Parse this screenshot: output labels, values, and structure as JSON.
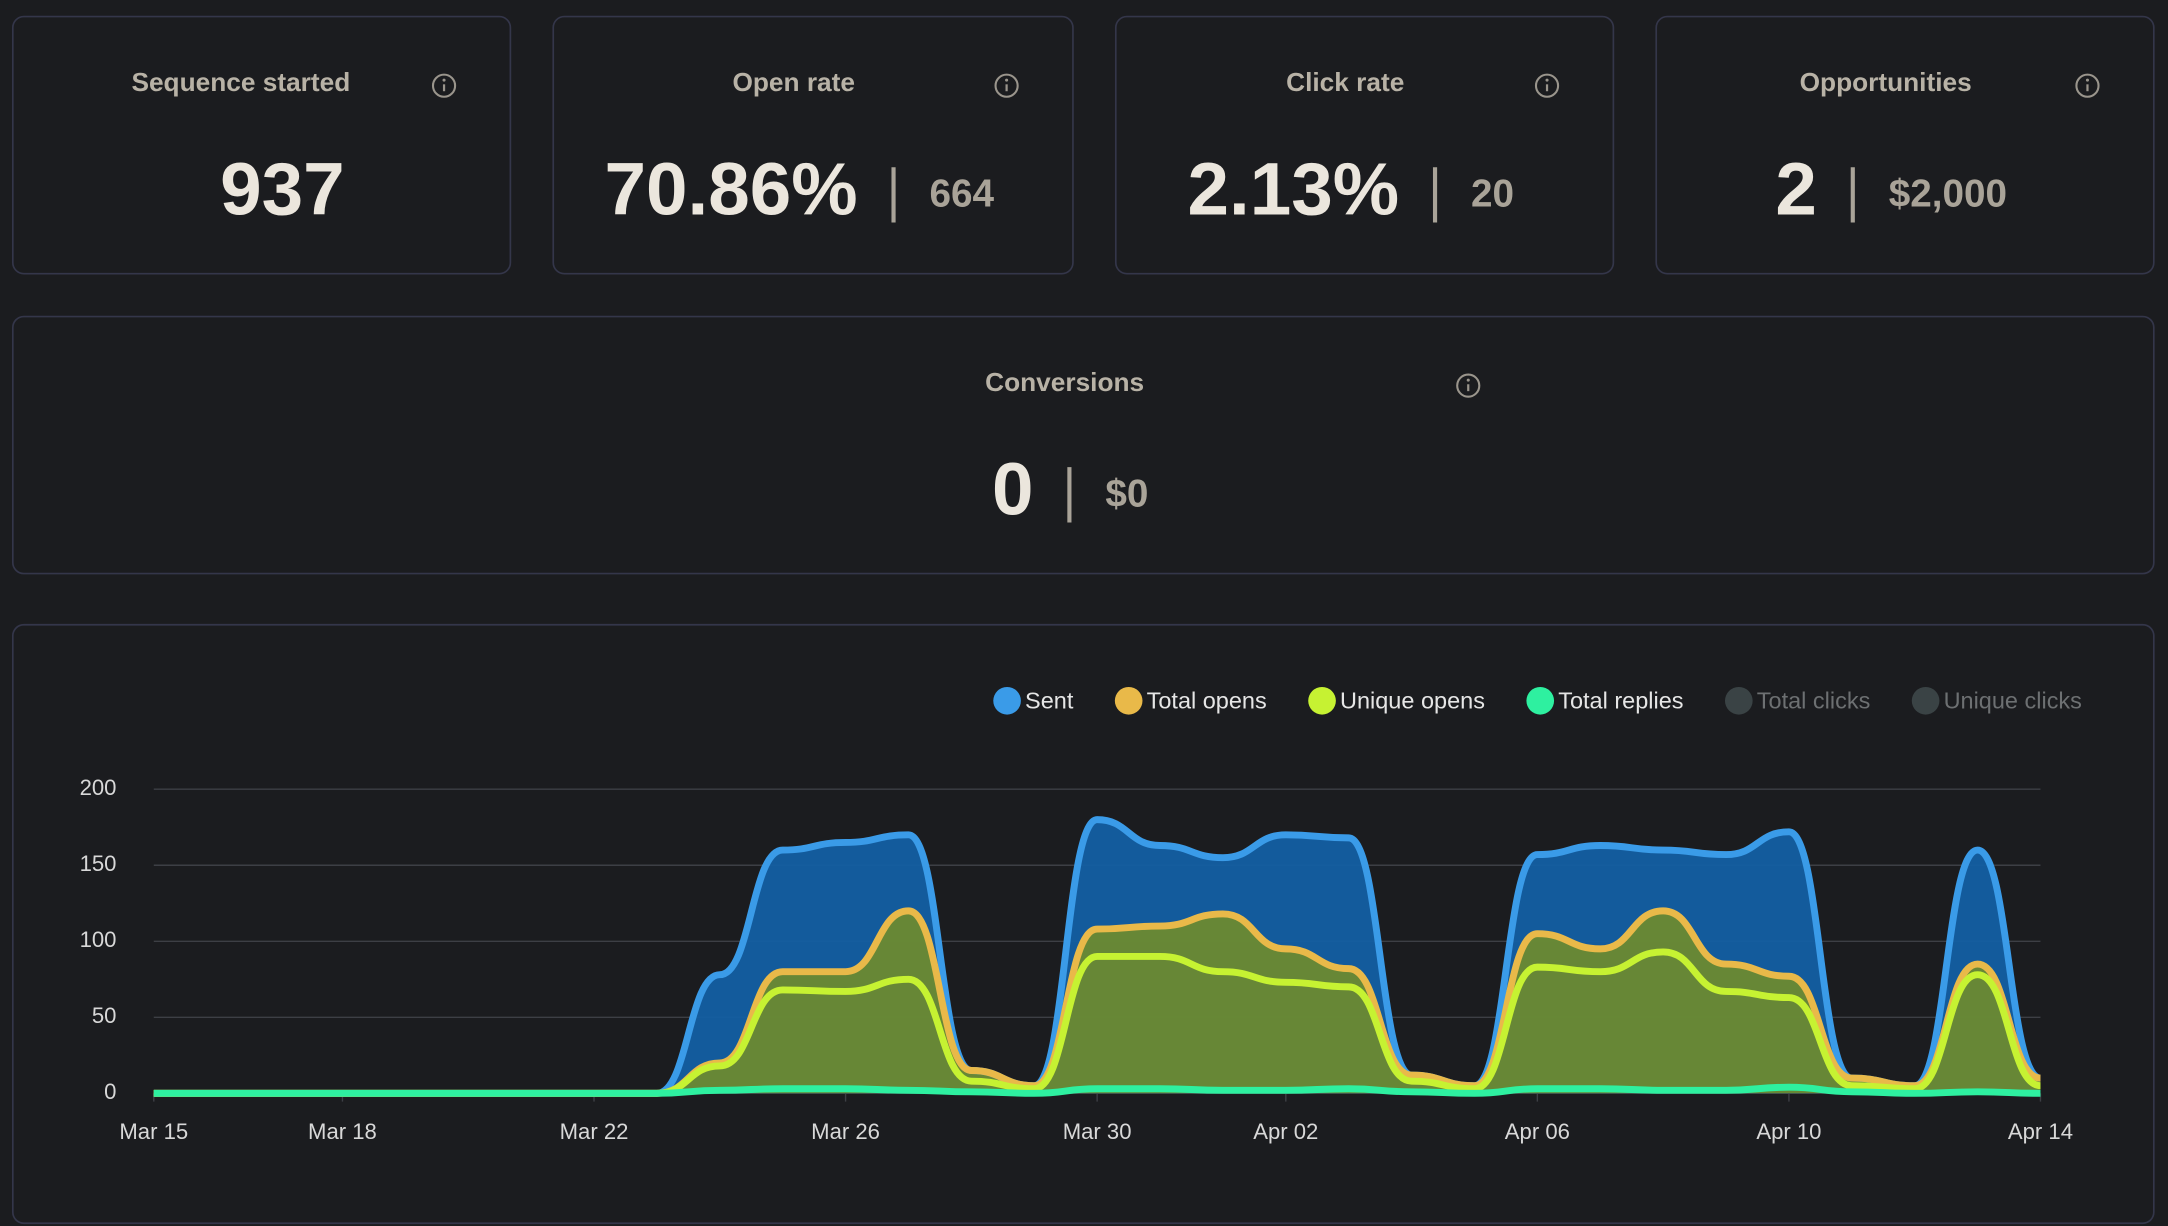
{
  "cards": [
    {
      "label": "Sequence started",
      "value": "937"
    },
    {
      "label": "Open rate",
      "value": "70.86%",
      "secondary": "664"
    },
    {
      "label": "Click rate",
      "value": "2.13%",
      "secondary": "20"
    },
    {
      "label": "Opportunities",
      "value": "2",
      "secondary": "$2,000"
    },
    {
      "label": "Conversions",
      "value": "0",
      "secondary": "$0"
    }
  ],
  "chart_data": {
    "type": "area",
    "categories": [
      "Mar 15",
      null,
      null,
      "Mar 18",
      null,
      null,
      null,
      "Mar 22",
      null,
      null,
      null,
      "Mar 26",
      null,
      null,
      null,
      "Mar 30",
      null,
      null,
      "Apr 02",
      null,
      null,
      null,
      "Apr 06",
      null,
      null,
      null,
      "Apr 10",
      null,
      null,
      null,
      "Apr 14"
    ],
    "ylim": [
      0,
      200
    ],
    "yticks": [
      0,
      50,
      100,
      150,
      200
    ],
    "grid": true,
    "series": [
      {
        "name": "Sent",
        "color": "#3a9be8",
        "fill": "#135fa3",
        "values": [
          0,
          0,
          0,
          0,
          0,
          0,
          0,
          0,
          0,
          78,
          160,
          165,
          170,
          15,
          5,
          180,
          163,
          155,
          170,
          168,
          12,
          5,
          157,
          163,
          160,
          157,
          172,
          10,
          5,
          160,
          10
        ]
      },
      {
        "name": "Total opens",
        "color": "#e9b949",
        "fill": "#6c8a30",
        "values": [
          0,
          0,
          0,
          0,
          0,
          0,
          0,
          0,
          0,
          20,
          80,
          80,
          120,
          15,
          5,
          108,
          110,
          118,
          95,
          82,
          12,
          5,
          105,
          95,
          120,
          85,
          77,
          10,
          5,
          85,
          10
        ]
      },
      {
        "name": "Unique opens",
        "color": "#c6f232",
        "values": [
          0,
          0,
          0,
          0,
          0,
          0,
          0,
          0,
          0,
          18,
          68,
          67,
          75,
          8,
          3,
          90,
          90,
          80,
          73,
          70,
          8,
          3,
          83,
          80,
          93,
          67,
          63,
          5,
          3,
          78,
          5
        ]
      },
      {
        "name": "Total replies",
        "color": "#2ef0a0",
        "values": [
          0,
          0,
          0,
          0,
          0,
          0,
          0,
          0,
          0,
          2,
          3,
          3,
          2,
          1,
          0,
          3,
          3,
          2,
          2,
          3,
          1,
          0,
          3,
          3,
          2,
          2,
          4,
          1,
          0,
          1,
          0
        ]
      },
      {
        "name": "Total clicks",
        "color": "#3a4345",
        "visible": false
      },
      {
        "name": "Unique clicks",
        "color": "#3a4345",
        "visible": false
      }
    ]
  }
}
